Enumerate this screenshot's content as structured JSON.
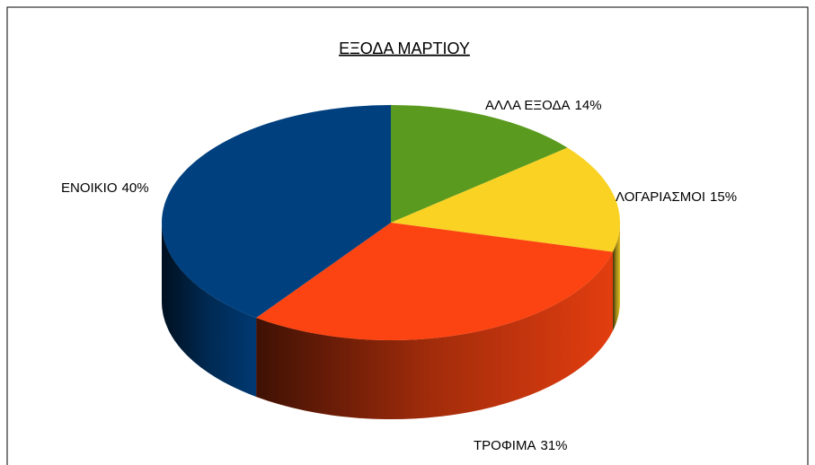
{
  "chart_data": {
    "type": "pie",
    "title": "ΕΞΟΔΑ ΜΑΡΤΙΟΥ",
    "categories": [
      "ΑΛΛΑ ΕΞΟΔΑ",
      "ΛΟΓΑΡΙΑΣΜΟΙ",
      "ΤΡΟΦΙΜΑ",
      "ΕΝΟΙΚΙΟ"
    ],
    "values": [
      14,
      15,
      31,
      40
    ],
    "value_labels": [
      "14%",
      "15%",
      "31%",
      "40%"
    ],
    "colors": [
      "#5a9a1e",
      "#f9d224",
      "#fb4411",
      "#00407f"
    ]
  }
}
